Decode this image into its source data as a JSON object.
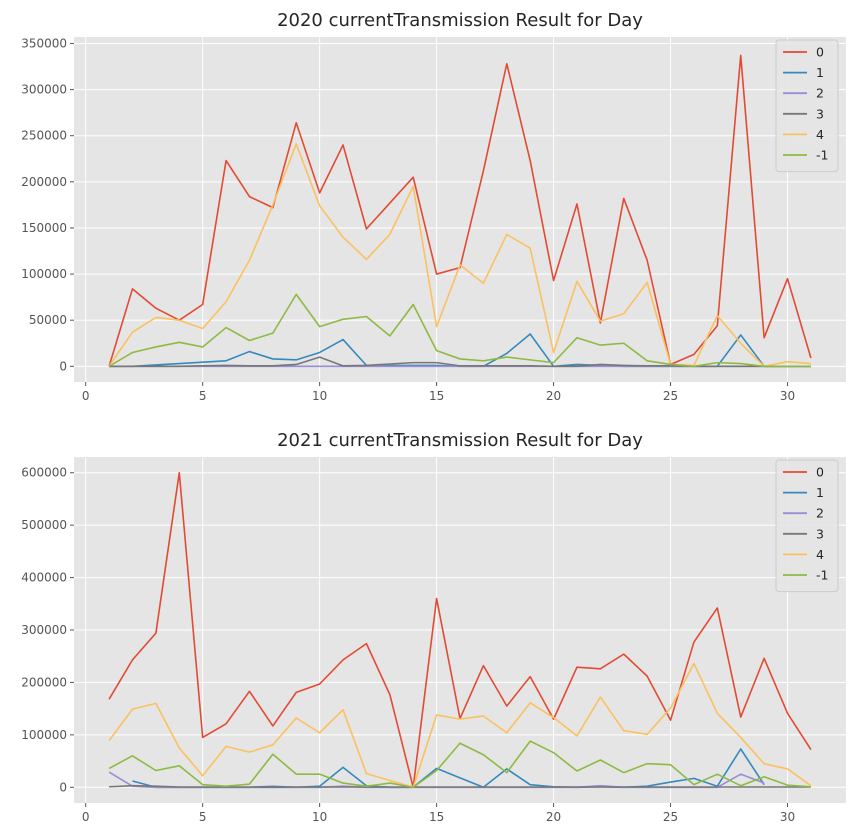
{
  "chart_data": [
    {
      "type": "line",
      "title": "2020 currentTransmission Result for Day",
      "xlabel": "",
      "ylabel": "",
      "xlim": [
        -0.5,
        32.5
      ],
      "ylim": [
        -17000,
        357000
      ],
      "xticks": [
        0,
        5,
        10,
        15,
        20,
        25,
        30
      ],
      "yticks": [
        0,
        50000,
        100000,
        150000,
        200000,
        250000,
        300000,
        350000
      ],
      "grid": true,
      "legend_position": "top-right",
      "series": [
        {
          "name": "0",
          "color": "#E24A33",
          "x": [
            1,
            2,
            3,
            4,
            5,
            6,
            7,
            8,
            9,
            10,
            11,
            12,
            13,
            14,
            15,
            16,
            17,
            18,
            19,
            20,
            21,
            22,
            23,
            24,
            25,
            26,
            27,
            28,
            29,
            30,
            31
          ],
          "y": [
            0,
            84000,
            63000,
            50000,
            67000,
            223000,
            184000,
            172000,
            264000,
            188000,
            240000,
            149000,
            177000,
            205000,
            100000,
            107000,
            212000,
            328000,
            223000,
            93000,
            176000,
            47000,
            182000,
            115000,
            2000,
            13000,
            44000,
            337000,
            31000,
            95000,
            9000
          ]
        },
        {
          "name": "1",
          "color": "#348ABD",
          "x": [
            1,
            2,
            3,
            4,
            5,
            6,
            7,
            8,
            9,
            10,
            11,
            12,
            13,
            14,
            15,
            16,
            17,
            18,
            19,
            20,
            21,
            22,
            23,
            24,
            25,
            26,
            27,
            28,
            29,
            30,
            31
          ],
          "y": [
            0,
            0,
            1500,
            3000,
            4500,
            6000,
            16000,
            8000,
            7000,
            15000,
            29000,
            1000,
            1000,
            1000,
            1000,
            0,
            0,
            14000,
            35000,
            0,
            2000,
            1000,
            0,
            0,
            0,
            0,
            0,
            34000,
            0,
            0,
            0
          ]
        },
        {
          "name": "2",
          "color": "#988ED5",
          "x": [
            1,
            2,
            3,
            4,
            5,
            6,
            7,
            8,
            9,
            10,
            11,
            12,
            13,
            14,
            15,
            16,
            17,
            18,
            19,
            20,
            21,
            22,
            23,
            24,
            25,
            26,
            27,
            28,
            29,
            30,
            31
          ],
          "y": [
            0,
            0,
            0,
            0,
            0,
            0,
            0,
            0,
            0,
            0,
            0,
            0,
            0,
            0,
            0,
            0,
            0,
            0,
            0,
            0,
            0,
            0,
            0,
            0,
            0,
            0,
            0,
            0,
            0,
            0,
            0
          ]
        },
        {
          "name": "3",
          "color": "#777777",
          "x": [
            1,
            2,
            3,
            4,
            5,
            6,
            7,
            8,
            9,
            10,
            11,
            12,
            13,
            14,
            15,
            16,
            17,
            18,
            19,
            20,
            21,
            22,
            23,
            24,
            25,
            26,
            27,
            28,
            29,
            30,
            31
          ],
          "y": [
            0,
            0,
            0,
            0,
            500,
            1000,
            500,
            500,
            2000,
            10000,
            500,
            1000,
            2500,
            4000,
            4000,
            500,
            500,
            500,
            500,
            0,
            0,
            2000,
            1000,
            500,
            500,
            0,
            0,
            0,
            0,
            0,
            0
          ]
        },
        {
          "name": "4",
          "color": "#FBC15E",
          "x": [
            1,
            2,
            3,
            4,
            5,
            6,
            7,
            8,
            9,
            10,
            11,
            12,
            13,
            14,
            15,
            16,
            17,
            18,
            19,
            20,
            21,
            22,
            23,
            24,
            25,
            26,
            27,
            28,
            29,
            30,
            31
          ],
          "y": [
            0,
            37000,
            53000,
            50000,
            41000,
            70000,
            115000,
            175000,
            241000,
            174000,
            140000,
            116000,
            143000,
            195000,
            43000,
            110000,
            90000,
            143000,
            128000,
            15000,
            92000,
            49000,
            57000,
            91000,
            2000,
            1000,
            55000,
            25000,
            0,
            5000,
            3000
          ]
        },
        {
          "name": "-1",
          "color": "#8EBA42",
          "x": [
            1,
            2,
            3,
            4,
            5,
            6,
            7,
            8,
            9,
            10,
            11,
            12,
            13,
            14,
            15,
            16,
            17,
            18,
            19,
            20,
            21,
            22,
            23,
            24,
            25,
            26,
            27,
            28,
            29,
            30,
            31
          ],
          "y": [
            0,
            15000,
            21000,
            26000,
            21000,
            42000,
            28000,
            36000,
            78000,
            43000,
            51000,
            54000,
            33000,
            67000,
            17000,
            8000,
            6000,
            10000,
            7000,
            4000,
            31000,
            23000,
            25000,
            6000,
            2000,
            0,
            4000,
            3000,
            0,
            0,
            0
          ]
        }
      ]
    },
    {
      "type": "line",
      "title": "2021 currentTransmission Result for Day",
      "xlabel": "",
      "ylabel": "",
      "xlim": [
        -0.5,
        32.5
      ],
      "ylim": [
        -30000,
        630000
      ],
      "xticks": [
        0,
        5,
        10,
        15,
        20,
        25,
        30
      ],
      "yticks": [
        0,
        100000,
        200000,
        300000,
        400000,
        500000,
        600000
      ],
      "grid": true,
      "legend_position": "top-right",
      "series": [
        {
          "name": "0",
          "color": "#E24A33",
          "x": [
            1,
            2,
            3,
            4,
            5,
            6,
            7,
            8,
            9,
            10,
            11,
            12,
            13,
            14,
            15,
            16,
            17,
            18,
            19,
            20,
            21,
            22,
            23,
            24,
            25,
            26,
            27,
            28,
            29,
            30,
            31
          ],
          "y": [
            168000,
            243000,
            294000,
            600000,
            95000,
            121000,
            183000,
            117000,
            181000,
            197000,
            243000,
            274000,
            177000,
            0,
            360000,
            131000,
            232000,
            155000,
            211000,
            130000,
            229000,
            226000,
            254000,
            212000,
            128000,
            277000,
            342000,
            134000,
            246000,
            141000,
            72000
          ]
        },
        {
          "name": "1",
          "color": "#348ABD",
          "x": [
            2,
            3,
            4,
            5,
            6,
            7,
            8,
            9,
            10,
            11,
            12,
            13,
            14,
            15,
            16,
            17,
            18,
            19,
            20,
            21,
            22,
            23,
            24,
            25,
            26,
            27,
            28,
            29
          ],
          "y": [
            12000,
            0,
            0,
            0,
            0,
            0,
            0,
            0,
            2000,
            38000,
            3000,
            0,
            0,
            36000,
            18000,
            0,
            35000,
            5000,
            1000,
            0,
            1000,
            0,
            2000,
            10000,
            17000,
            2000,
            73000,
            5000
          ]
        },
        {
          "name": "2",
          "color": "#988ED5",
          "x": [
            1,
            2,
            3,
            4,
            5,
            6,
            7,
            8,
            9,
            10,
            11,
            12,
            13,
            14,
            15,
            16,
            17,
            18,
            19,
            20,
            21,
            22,
            23,
            24,
            25,
            26,
            27,
            28,
            29
          ],
          "y": [
            29000,
            2000,
            0,
            0,
            0,
            0,
            0,
            2000,
            0,
            0,
            2000,
            0,
            0,
            0,
            0,
            0,
            0,
            0,
            0,
            0,
            0,
            3000,
            0,
            0,
            0,
            0,
            0,
            25000,
            8000
          ]
        },
        {
          "name": "3",
          "color": "#777777",
          "x": [
            1,
            2,
            3,
            4,
            5,
            6,
            7,
            8,
            9,
            10,
            11,
            12,
            13,
            14,
            15,
            16,
            17,
            18,
            19,
            20,
            21,
            22,
            23,
            24,
            25,
            26,
            27,
            28,
            29,
            30,
            31
          ],
          "y": [
            1000,
            3000,
            2000,
            500,
            500,
            500,
            500,
            1000,
            500,
            500,
            500,
            500,
            500,
            500,
            500,
            500,
            500,
            500,
            500,
            500,
            500,
            500,
            500,
            500,
            500,
            500,
            500,
            500,
            500,
            500,
            500
          ]
        },
        {
          "name": "4",
          "color": "#FBC15E",
          "x": [
            1,
            2,
            3,
            4,
            5,
            6,
            7,
            8,
            9,
            10,
            11,
            12,
            13,
            14,
            15,
            16,
            17,
            18,
            19,
            20,
            21,
            22,
            23,
            24,
            25,
            26,
            27,
            28,
            29,
            30,
            31
          ],
          "y": [
            89000,
            149000,
            160000,
            75000,
            22000,
            78000,
            67000,
            81000,
            132000,
            104000,
            148000,
            26000,
            13000,
            0,
            138000,
            130000,
            136000,
            104000,
            161000,
            133000,
            98000,
            172000,
            108000,
            101000,
            151000,
            236000,
            141000,
            95000,
            45000,
            35000,
            3000
          ]
        },
        {
          "name": "-1",
          "color": "#8EBA42",
          "x": [
            1,
            2,
            3,
            4,
            5,
            6,
            7,
            8,
            9,
            10,
            11,
            12,
            13,
            14,
            15,
            16,
            17,
            18,
            19,
            20,
            21,
            22,
            23,
            24,
            25,
            26,
            27,
            28,
            29,
            30,
            31
          ],
          "y": [
            36000,
            60000,
            32000,
            41000,
            5000,
            2000,
            6000,
            63000,
            25000,
            25000,
            8000,
            2000,
            8000,
            0,
            32000,
            84000,
            62000,
            28000,
            88000,
            66000,
            31000,
            52000,
            28000,
            45000,
            43000,
            5000,
            25000,
            3000,
            20000,
            4000,
            1000
          ]
        }
      ]
    }
  ]
}
